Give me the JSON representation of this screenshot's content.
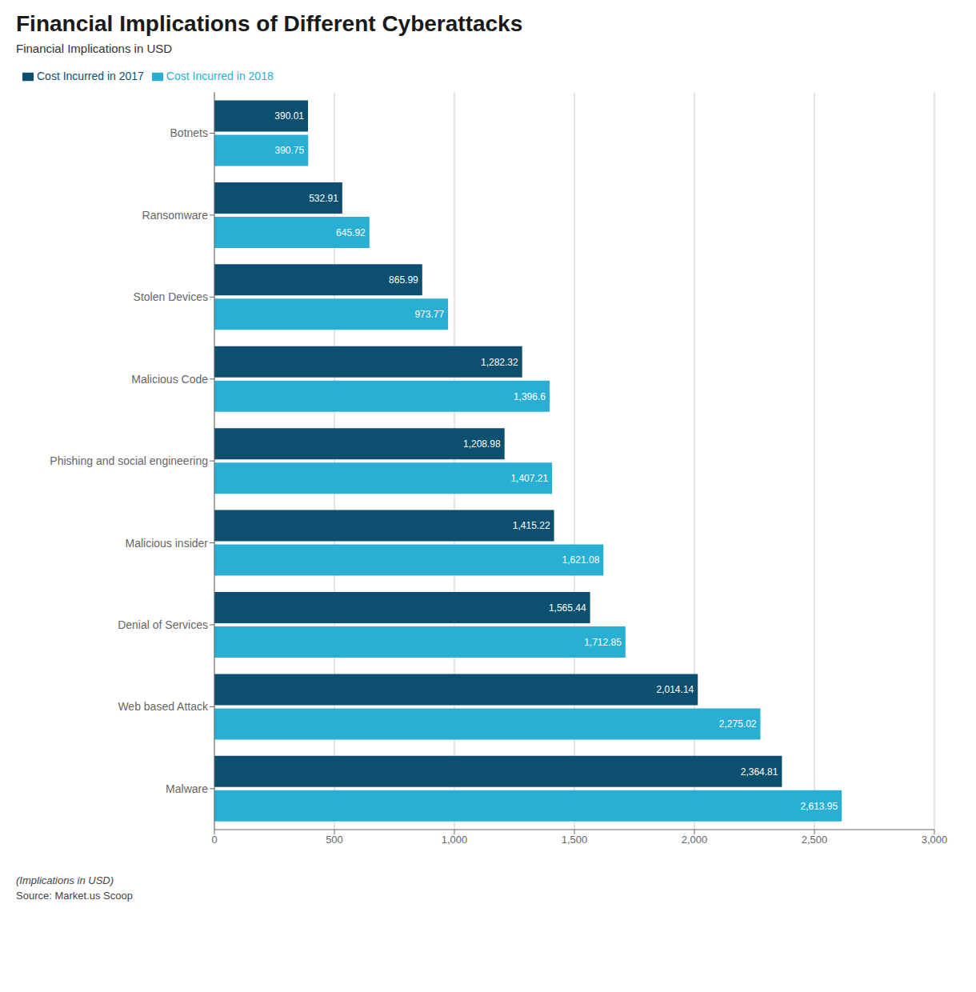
{
  "chart_data": {
    "type": "bar",
    "orientation": "horizontal",
    "title": "Financial Implications of Different Cyberattacks",
    "subtitle": "Financial Implications in USD",
    "xlabel": "(Implications in USD)",
    "annotations": [
      "Source: Market.us Scoop"
    ],
    "categories": [
      "Malware",
      "Web based Attack",
      "Denial of Services",
      "Malicious insider",
      "Phishing and social engineering",
      "Malicious Code",
      "Stolen Devices",
      "Ransomware",
      "Botnets"
    ],
    "series": [
      {
        "name": "Cost Incurred in 2017",
        "color": "#0d4f6e",
        "values": [
          2364.81,
          2014.14,
          1565.44,
          1415.22,
          1208.98,
          1282.32,
          865.99,
          532.91,
          390.01
        ],
        "value_labels": [
          "2,364.81",
          "2,014.14",
          "1,565.44",
          "1,415.22",
          "1,208.98",
          "1,282.32",
          "865.99",
          "532.91",
          "390.01"
        ]
      },
      {
        "name": "Cost Incurred in 2018",
        "color": "#29afd4",
        "values": [
          2613.95,
          2275.02,
          1712.85,
          1621.08,
          1407.21,
          1396.6,
          973.77,
          645.92,
          390.75
        ],
        "value_labels": [
          "2,613.95",
          "2,275.02",
          "1,712.85",
          "1,621.08",
          "1,407.21",
          "1,396.6",
          "973.77",
          "645.92",
          "390.75"
        ]
      }
    ],
    "xlim": [
      0,
      3000
    ],
    "xticks": [
      0,
      500,
      {
        "value": 1000,
        "label": "1,000"
      },
      {
        "value": 1500,
        "label": "1,500"
      },
      {
        "value": 2000,
        "label": "2,000"
      },
      {
        "value": 2500,
        "label": "2,500"
      },
      {
        "value": 3000,
        "label": "3,000"
      }
    ],
    "grid": true,
    "legend": "upper left",
    "data_labels": true
  }
}
